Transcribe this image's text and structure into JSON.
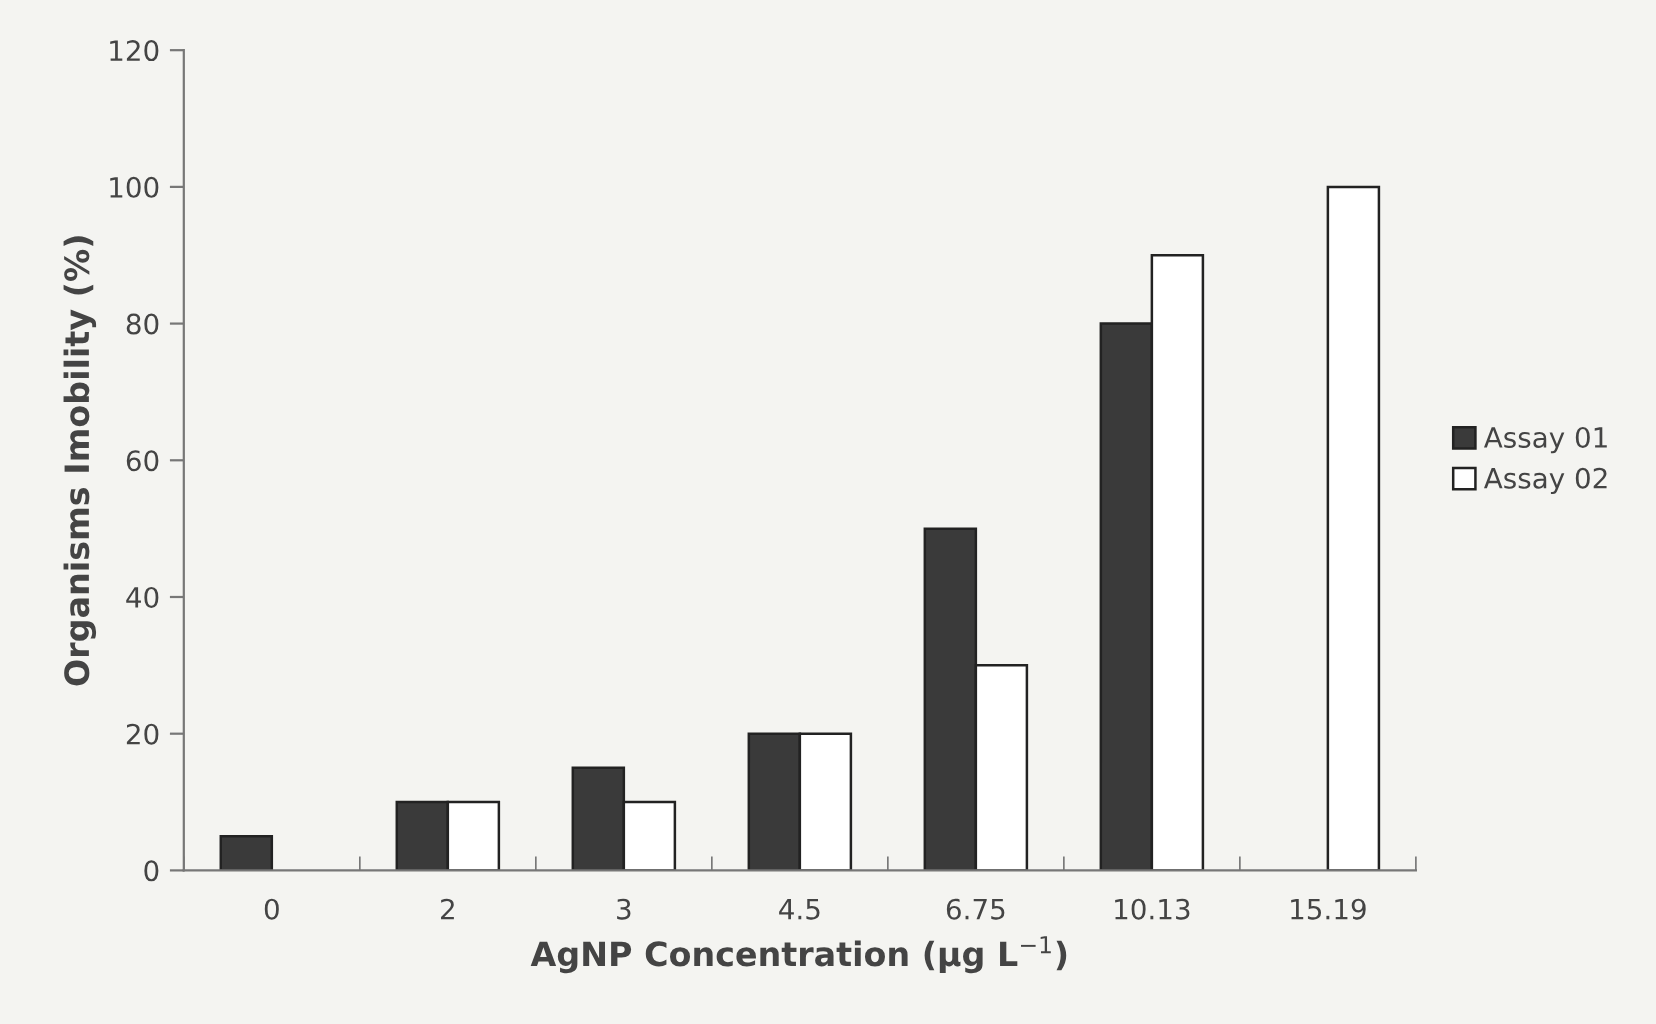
{
  "chart_data": {
    "type": "bar",
    "xlabel": "AgNP Concentration (µg L$^{−1}$)",
    "ylabel": "Organisms Imobility (%)",
    "categories": [
      "0",
      "2",
      "3",
      "4.5",
      "6.75",
      "10.13",
      "15.19"
    ],
    "series": [
      {
        "name": "Assay 01",
        "color": "#3a3a3a",
        "values": [
          5,
          10,
          15,
          20,
          50,
          80,
          null
        ]
      },
      {
        "name": "Assay 02",
        "color": "#ffffff",
        "values": [
          null,
          10,
          10,
          20,
          30,
          90,
          100
        ]
      }
    ],
    "ylim": [
      0,
      120
    ],
    "yticks": [
      0,
      20,
      40,
      60,
      80,
      100,
      120
    ],
    "grid": false,
    "legend": "right"
  }
}
